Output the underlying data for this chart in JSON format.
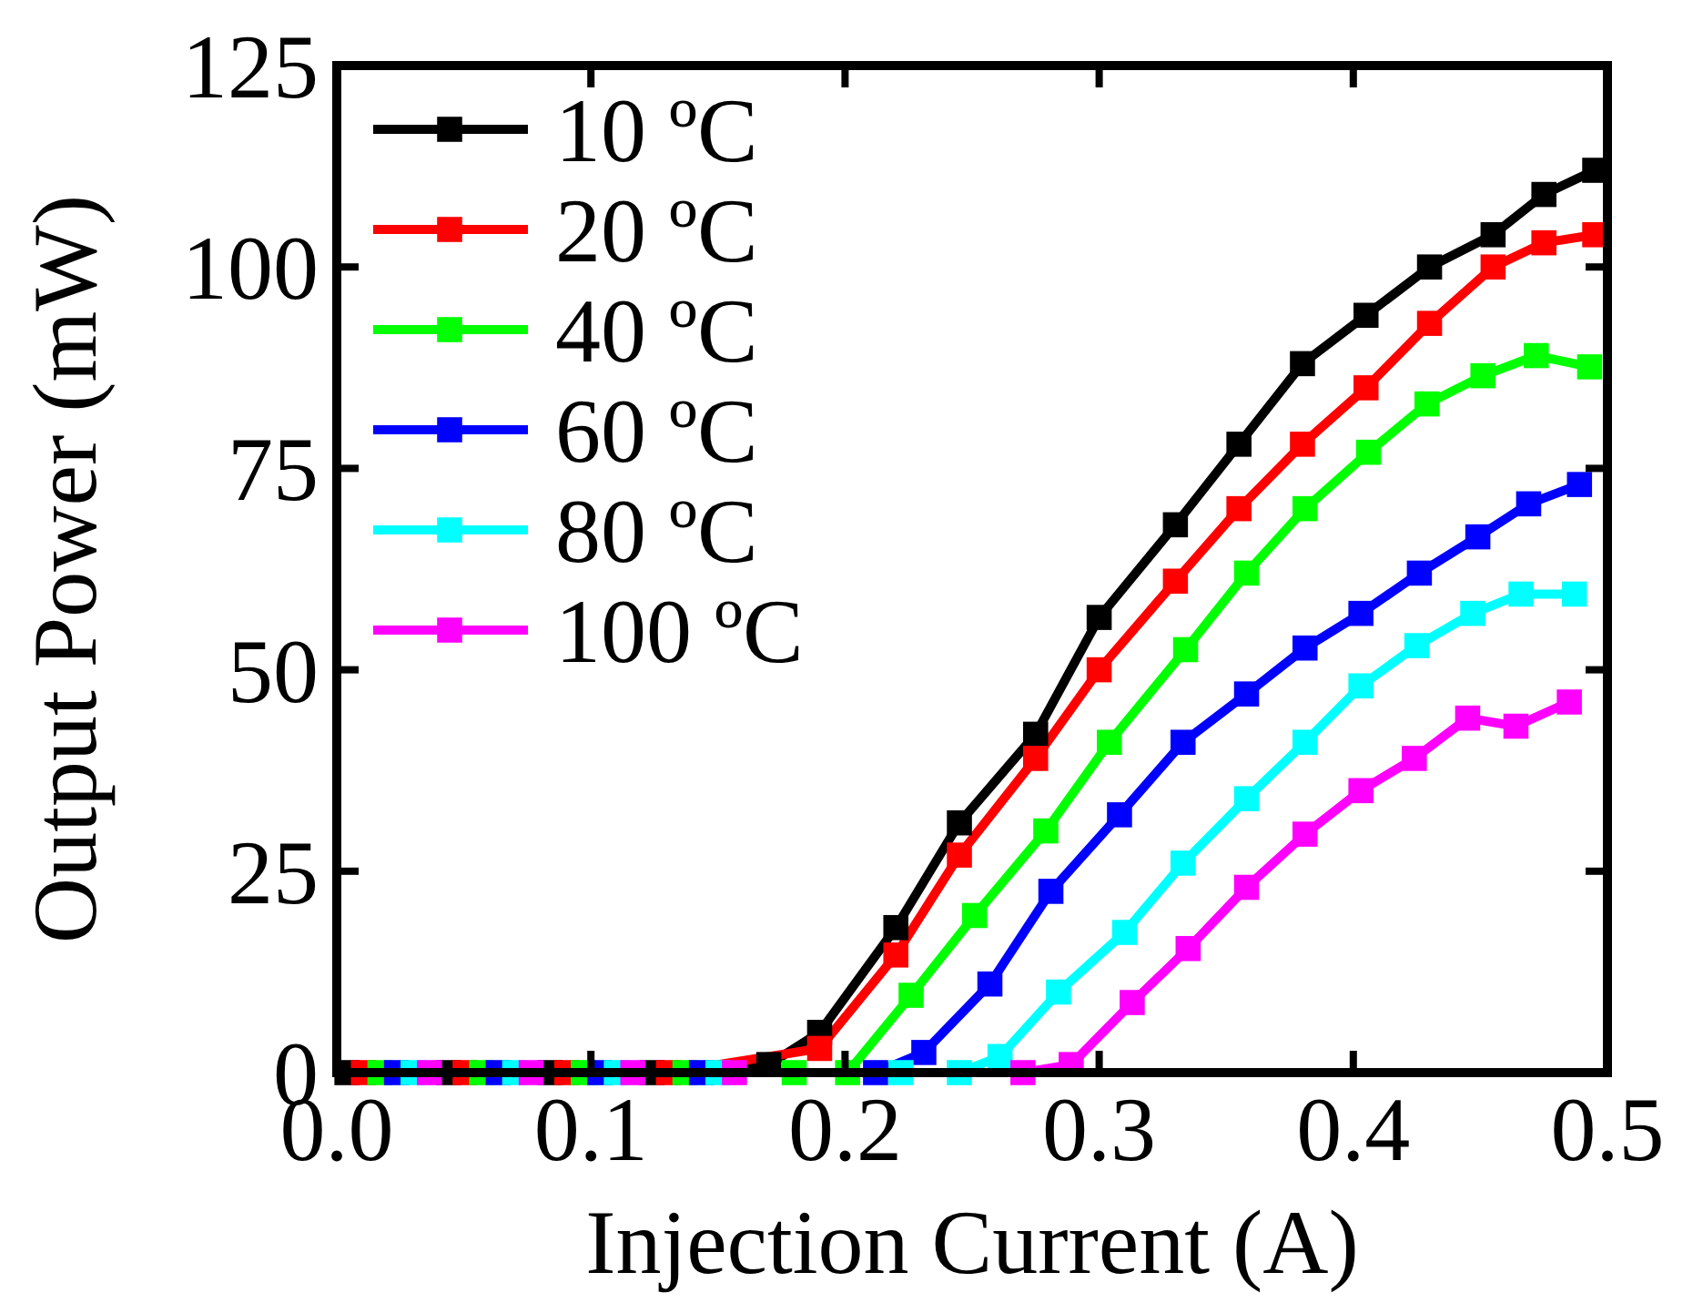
{
  "chart_data": {
    "type": "line",
    "xlabel": "Injection Current (A)",
    "ylabel": "Output Power (mW)",
    "xlim": [
      0,
      0.5
    ],
    "xticks": [
      {
        "value": 0,
        "label": "0.0"
      },
      0.1,
      0.2,
      0.3,
      0.4,
      0.5
    ],
    "ylim": [
      0,
      125
    ],
    "yticks": [
      0,
      25,
      50,
      75,
      100,
      125
    ],
    "grid": false,
    "legend": "top left",
    "marker": "square",
    "line_style": "solid",
    "series": [
      {
        "name": "10 ºC",
        "color": "#000000",
        "x": [
          0.004,
          0.044,
          0.084,
          0.124,
          0.17,
          0.19,
          0.22,
          0.245,
          0.275,
          0.3,
          0.33,
          0.355,
          0.38,
          0.405,
          0.43,
          0.455,
          0.475,
          0.495
        ],
        "values": [
          0,
          0,
          0,
          0,
          1,
          5,
          18,
          31,
          42,
          56.5,
          68,
          78,
          88,
          94,
          100,
          104,
          109,
          112
        ]
      },
      {
        "name": "20 ºC",
        "color": "#ff0000",
        "x": [
          0.0105,
          0.0505,
          0.0905,
          0.1305,
          0.19,
          0.22,
          0.245,
          0.275,
          0.3,
          0.33,
          0.355,
          0.38,
          0.405,
          0.43,
          0.455,
          0.475,
          0.495
        ],
        "values": [
          0,
          0,
          0,
          0,
          3,
          14.6,
          27,
          39,
          50,
          61,
          70,
          78,
          85,
          93,
          100,
          103,
          104
        ]
      },
      {
        "name": "40 ºC",
        "color": "#00ff00",
        "x": [
          0.017,
          0.057,
          0.097,
          0.137,
          0.18,
          0.201,
          0.226,
          0.251,
          0.279,
          0.304,
          0.334,
          0.358,
          0.381,
          0.406,
          0.429,
          0.451,
          0.472,
          0.493
        ],
        "values": [
          0,
          0,
          0,
          0,
          0,
          0,
          9.6,
          19.5,
          30,
          41,
          52.5,
          62,
          70,
          77,
          83,
          86.5,
          89,
          87.6
        ]
      },
      {
        "name": "60 ºC",
        "color": "#0000ff",
        "x": [
          0.0235,
          0.0635,
          0.1035,
          0.1435,
          0.212,
          0.231,
          0.257,
          0.281,
          0.308,
          0.333,
          0.358,
          0.381,
          0.403,
          0.426,
          0.449,
          0.469,
          0.489
        ],
        "values": [
          0,
          0,
          0,
          0,
          0,
          2.5,
          11,
          22.5,
          32,
          41,
          47,
          52.7,
          57,
          62,
          66.5,
          70.6,
          73
        ]
      },
      {
        "name": "80 ºC",
        "color": "#00ffff",
        "x": [
          0.03,
          0.07,
          0.11,
          0.15,
          0.222,
          0.245,
          0.261,
          0.284,
          0.31,
          0.333,
          0.358,
          0.381,
          0.403,
          0.425,
          0.447,
          0.466,
          0.487
        ],
        "values": [
          0,
          0,
          0,
          0,
          0,
          0,
          2,
          10,
          17.4,
          26,
          34,
          41,
          48,
          53,
          57,
          59.4,
          59.4
        ]
      },
      {
        "name": "100 ºC",
        "color": "#ff00ff",
        "x": [
          0.0365,
          0.0765,
          0.1165,
          0.1565,
          0.27,
          0.289,
          0.313,
          0.335,
          0.358,
          0.381,
          0.403,
          0.424,
          0.445,
          0.464,
          0.485
        ],
        "values": [
          0,
          0,
          0,
          0,
          0,
          1,
          8.7,
          15.4,
          23,
          29.6,
          35,
          39,
          44,
          43,
          46
        ]
      }
    ]
  }
}
